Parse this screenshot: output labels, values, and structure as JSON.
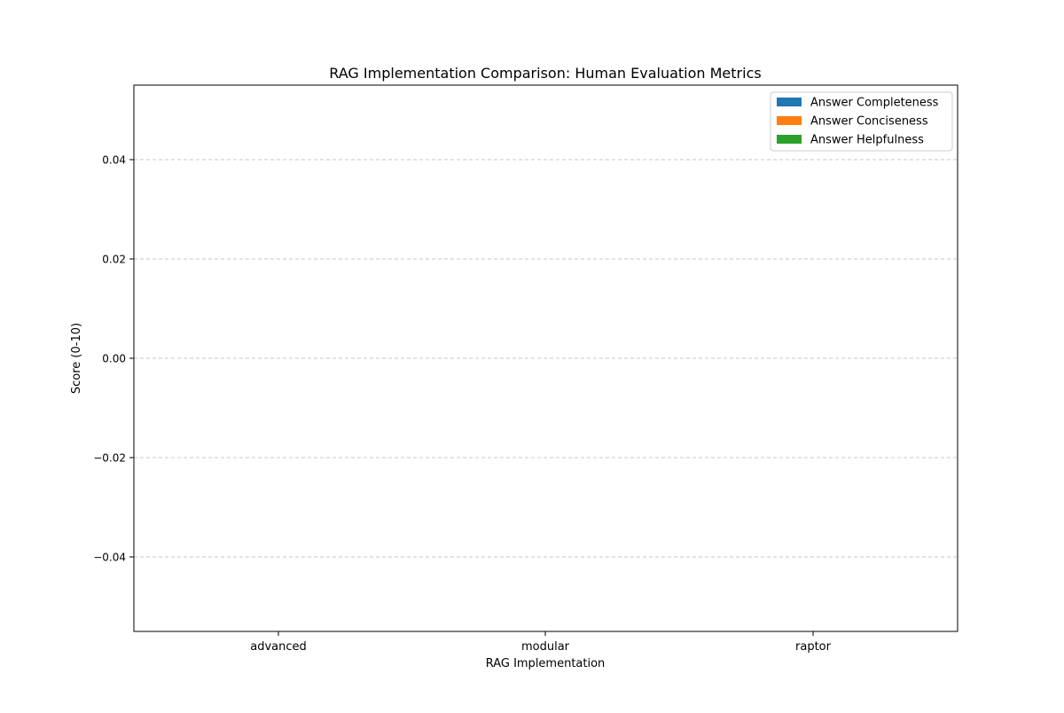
{
  "chart_data": {
    "type": "bar",
    "title": "RAG Implementation Comparison: Human Evaluation Metrics",
    "xlabel": "RAG Implementation",
    "ylabel": "Score (0-10)",
    "categories": [
      "advanced",
      "modular",
      "raptor"
    ],
    "series": [
      {
        "name": "Answer Completeness",
        "values": [
          0,
          0,
          0
        ],
        "color": "#1f77b4"
      },
      {
        "name": "Answer Conciseness",
        "values": [
          0,
          0,
          0
        ],
        "color": "#ff7f0e"
      },
      {
        "name": "Answer Helpfulness",
        "values": [
          0,
          0,
          0
        ],
        "color": "#2ca02c"
      }
    ],
    "ylim": [
      -0.055,
      0.055
    ],
    "yticks": [
      -0.04,
      -0.02,
      0.0,
      0.02,
      0.04
    ],
    "ytick_labels": [
      "−0.04",
      "−0.02",
      "0.00",
      "0.02",
      "0.04"
    ],
    "grid": true,
    "grid_axis": "y",
    "legend_position": "top-right"
  }
}
